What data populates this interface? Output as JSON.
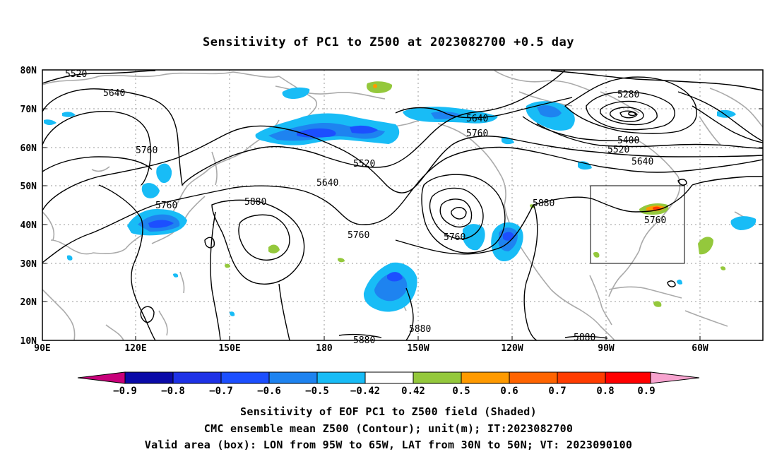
{
  "title": "Sensitivity of PC1 to Z500 at 2023082700 +0.5 day",
  "lat_labels": [
    "80N",
    "70N",
    "60N",
    "50N",
    "40N",
    "30N",
    "20N",
    "10N"
  ],
  "lon_labels": [
    "90E",
    "120E",
    "150E",
    "180",
    "150W",
    "120W",
    "90W",
    "60W"
  ],
  "contour_labels": [
    "5520",
    "5640",
    "5760",
    "5760",
    "5280",
    "5640",
    "5760",
    "5400",
    "5520",
    "5640",
    "5520",
    "5640",
    "5880",
    "5760",
    "5760",
    "5880",
    "5760",
    "5880",
    "5880",
    "5880"
  ],
  "colorbar": {
    "colors": [
      "#c8007a",
      "#0a0aa8",
      "#1e32e6",
      "#1c4fff",
      "#1e83f0",
      "#18bcf6",
      "#ffffff",
      "#94c83c",
      "#ff9a00",
      "#ff6400",
      "#ff3c00",
      "#ff0000",
      "#f7a3cf"
    ],
    "tick_labels": [
      "−0.9",
      "−0.8",
      "−0.7",
      "−0.6",
      "−0.5",
      "−0.42",
      "0.42",
      "0.5",
      "0.6",
      "0.7",
      "0.8",
      "0.9"
    ]
  },
  "captions": {
    "line1": "Sensitivity of EOF PC1 to Z500 field (Shaded)",
    "line2": "CMC ensemble mean Z500 (Contour); unit(m); IT:2023082700",
    "line3": "Valid area (box): LON from 95W to 65W, LAT from 30N to 50N; VT: 2023090100"
  },
  "valid_area": {
    "lon_min": -95,
    "lon_max": -65,
    "lat_min": 30,
    "lat_max": 50
  }
}
